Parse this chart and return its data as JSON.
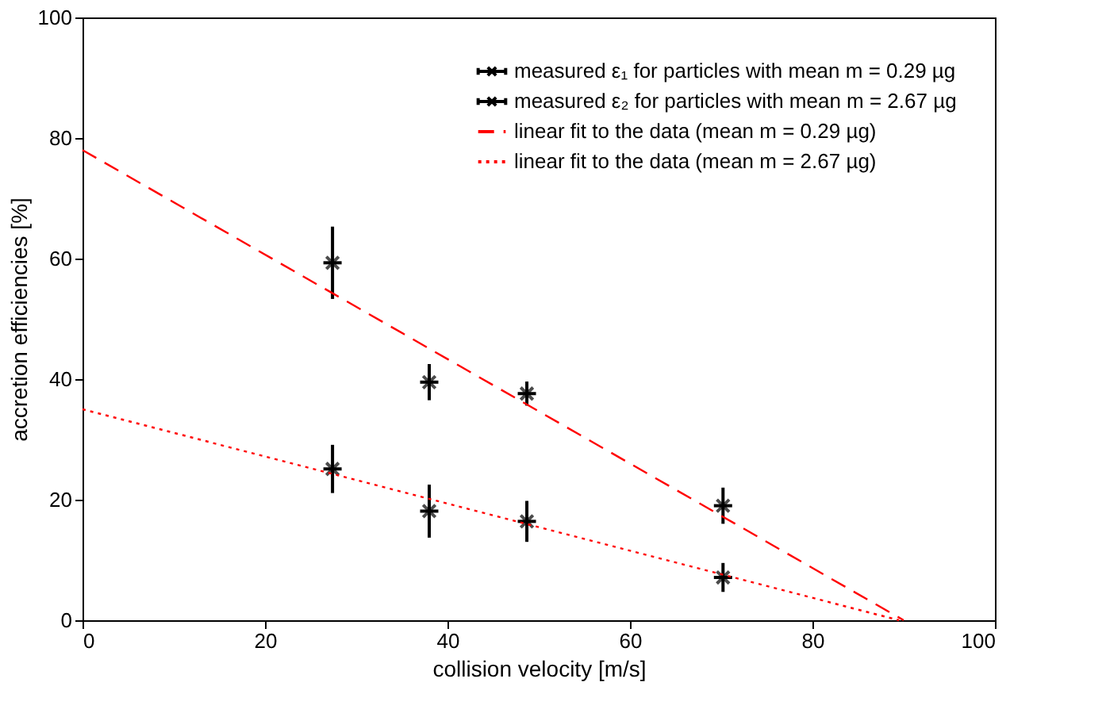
{
  "chart_data": {
    "type": "scatter",
    "xlabel": "collision velocity [m/s]",
    "ylabel": "accretion efficiencies [%]",
    "xlim": [
      0,
      100
    ],
    "ylim": [
      0,
      100
    ],
    "xticks": [
      0,
      20,
      40,
      60,
      80,
      100
    ],
    "yticks": [
      0,
      20,
      40,
      60,
      80,
      100
    ],
    "grid": false,
    "legend": "top right",
    "series": [
      {
        "name": "measured ε₁ for particles with mean m = 0.29 µg",
        "color": "#000000",
        "type": "scatter",
        "marker": "cross",
        "x": [
          27.4,
          38.0,
          48.7,
          70.2
        ],
        "values": [
          59.3,
          39.5,
          37.6,
          19.0
        ],
        "errors": [
          6,
          3,
          2,
          3
        ],
        "xerrors": [
          1,
          1,
          1,
          1
        ]
      },
      {
        "name": "measured ε₂ for particles with mean m = 2.67 µg",
        "color": "#000000",
        "type": "scatter",
        "marker": "cross",
        "x": [
          27.4,
          38.0,
          48.7,
          70.2
        ],
        "values": [
          25.1,
          18.1,
          16.4,
          7.1
        ],
        "errors": [
          4,
          4.4,
          3.4,
          2.4
        ],
        "xerrors": [
          1,
          1,
          1,
          1
        ]
      },
      {
        "name": "linear fit to the data (mean m = 0.29 µg)",
        "color": "#ff0000",
        "type": "line",
        "line_style": "dashed",
        "x": [
          0,
          90
        ],
        "values": [
          78,
          0
        ]
      },
      {
        "name": "linear fit to the data (mean m = 2.67 µg)",
        "color": "#ff0000",
        "type": "line",
        "line_style": "dotted",
        "x": [
          0,
          89.5
        ],
        "values": [
          35,
          0
        ]
      }
    ]
  }
}
